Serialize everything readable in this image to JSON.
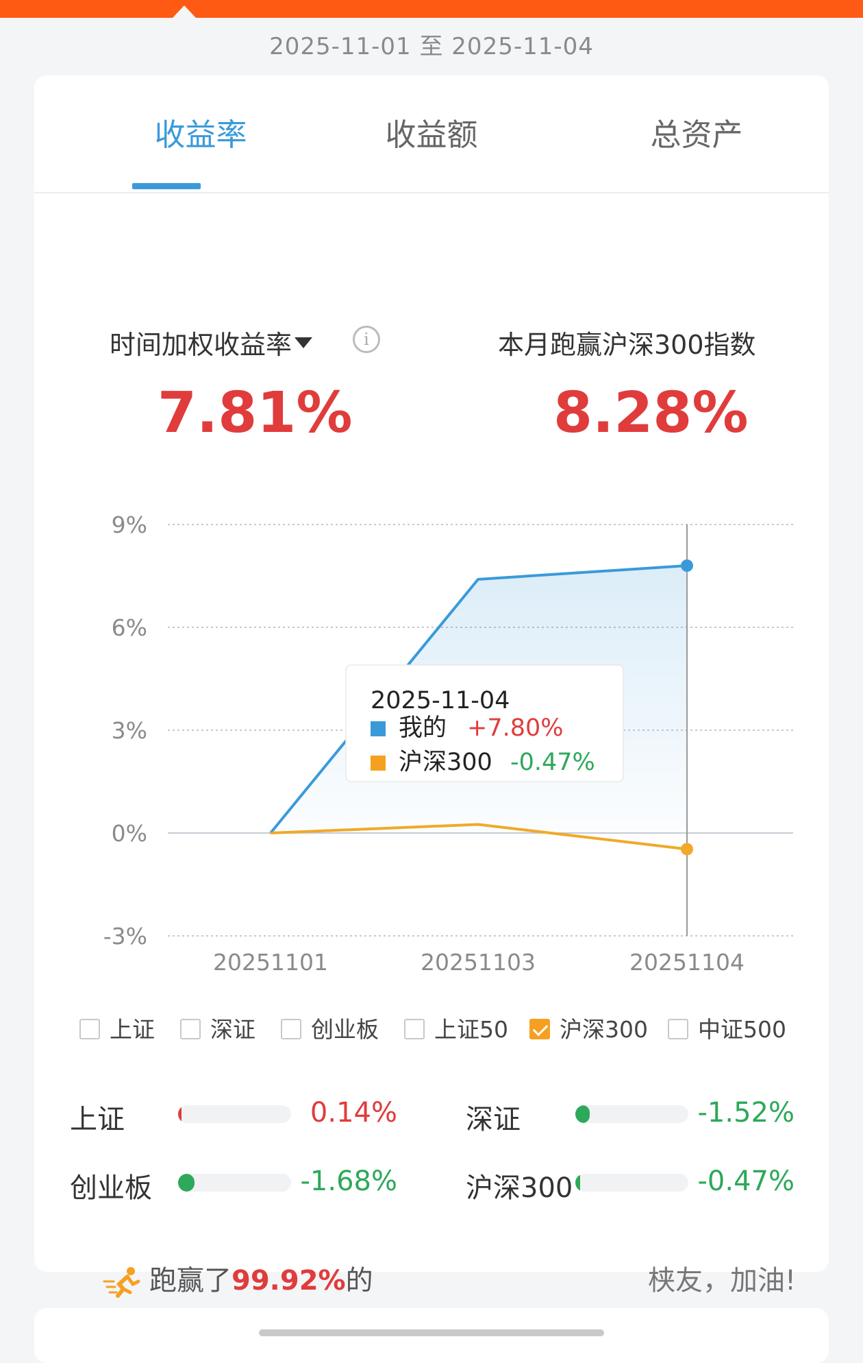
{
  "header": {
    "date_range": "2025-11-01 至 2025-11-04"
  },
  "tabs": [
    {
      "label": "收益率",
      "active": true
    },
    {
      "label": "收益额",
      "active": false
    },
    {
      "label": "总资产",
      "active": false
    }
  ],
  "metrics": {
    "left": {
      "label": "时间加权收益率",
      "value": "7.81%"
    },
    "right": {
      "label": "本月跑赢沪深300指数",
      "value": "8.28%"
    }
  },
  "chart_data": {
    "type": "line",
    "x": [
      "20251101",
      "20251103",
      "20251104"
    ],
    "y_ticks": [
      "9%",
      "6%",
      "3%",
      "0%",
      "-3%"
    ],
    "ylim": [
      -3,
      9
    ],
    "series": [
      {
        "name": "我的",
        "color": "#3a9ad9",
        "values": [
          0.0,
          7.4,
          7.8
        ]
      },
      {
        "name": "沪深300",
        "color": "#f0a929",
        "values": [
          0.0,
          0.25,
          -0.47
        ]
      }
    ],
    "tooltip": {
      "date": "2025-11-04",
      "items": [
        {
          "name": "我的",
          "value": "+7.80%",
          "color": "#3a9ad9",
          "value_color": "#e03c3c"
        },
        {
          "name": "沪深300",
          "value": "-0.47%",
          "color": "#f5a021",
          "value_color": "#2ea85a"
        }
      ]
    },
    "grid": true
  },
  "legend": [
    {
      "label": "上证",
      "checked": false
    },
    {
      "label": "深证",
      "checked": false
    },
    {
      "label": "创业板",
      "checked": false
    },
    {
      "label": "上证50",
      "checked": false
    },
    {
      "label": "沪深300",
      "checked": true
    },
    {
      "label": "中证500",
      "checked": false
    }
  ],
  "indices": [
    {
      "name": "上证",
      "value": "0.14%",
      "pct": 0.14,
      "color": "#e03c3c"
    },
    {
      "name": "深证",
      "value": "-1.52%",
      "pct": -1.52,
      "color": "#2ea85a"
    },
    {
      "name": "创业板",
      "value": "-1.68%",
      "pct": -1.68,
      "color": "#2ea85a"
    },
    {
      "name": "沪深300",
      "value": "-0.47%",
      "pct": -0.47,
      "color": "#2ea85a"
    }
  ],
  "footer": {
    "prefix": "跑赢了",
    "percent": "99.92%",
    "suffix": "的",
    "cheer": "𬂩友，加油!"
  }
}
